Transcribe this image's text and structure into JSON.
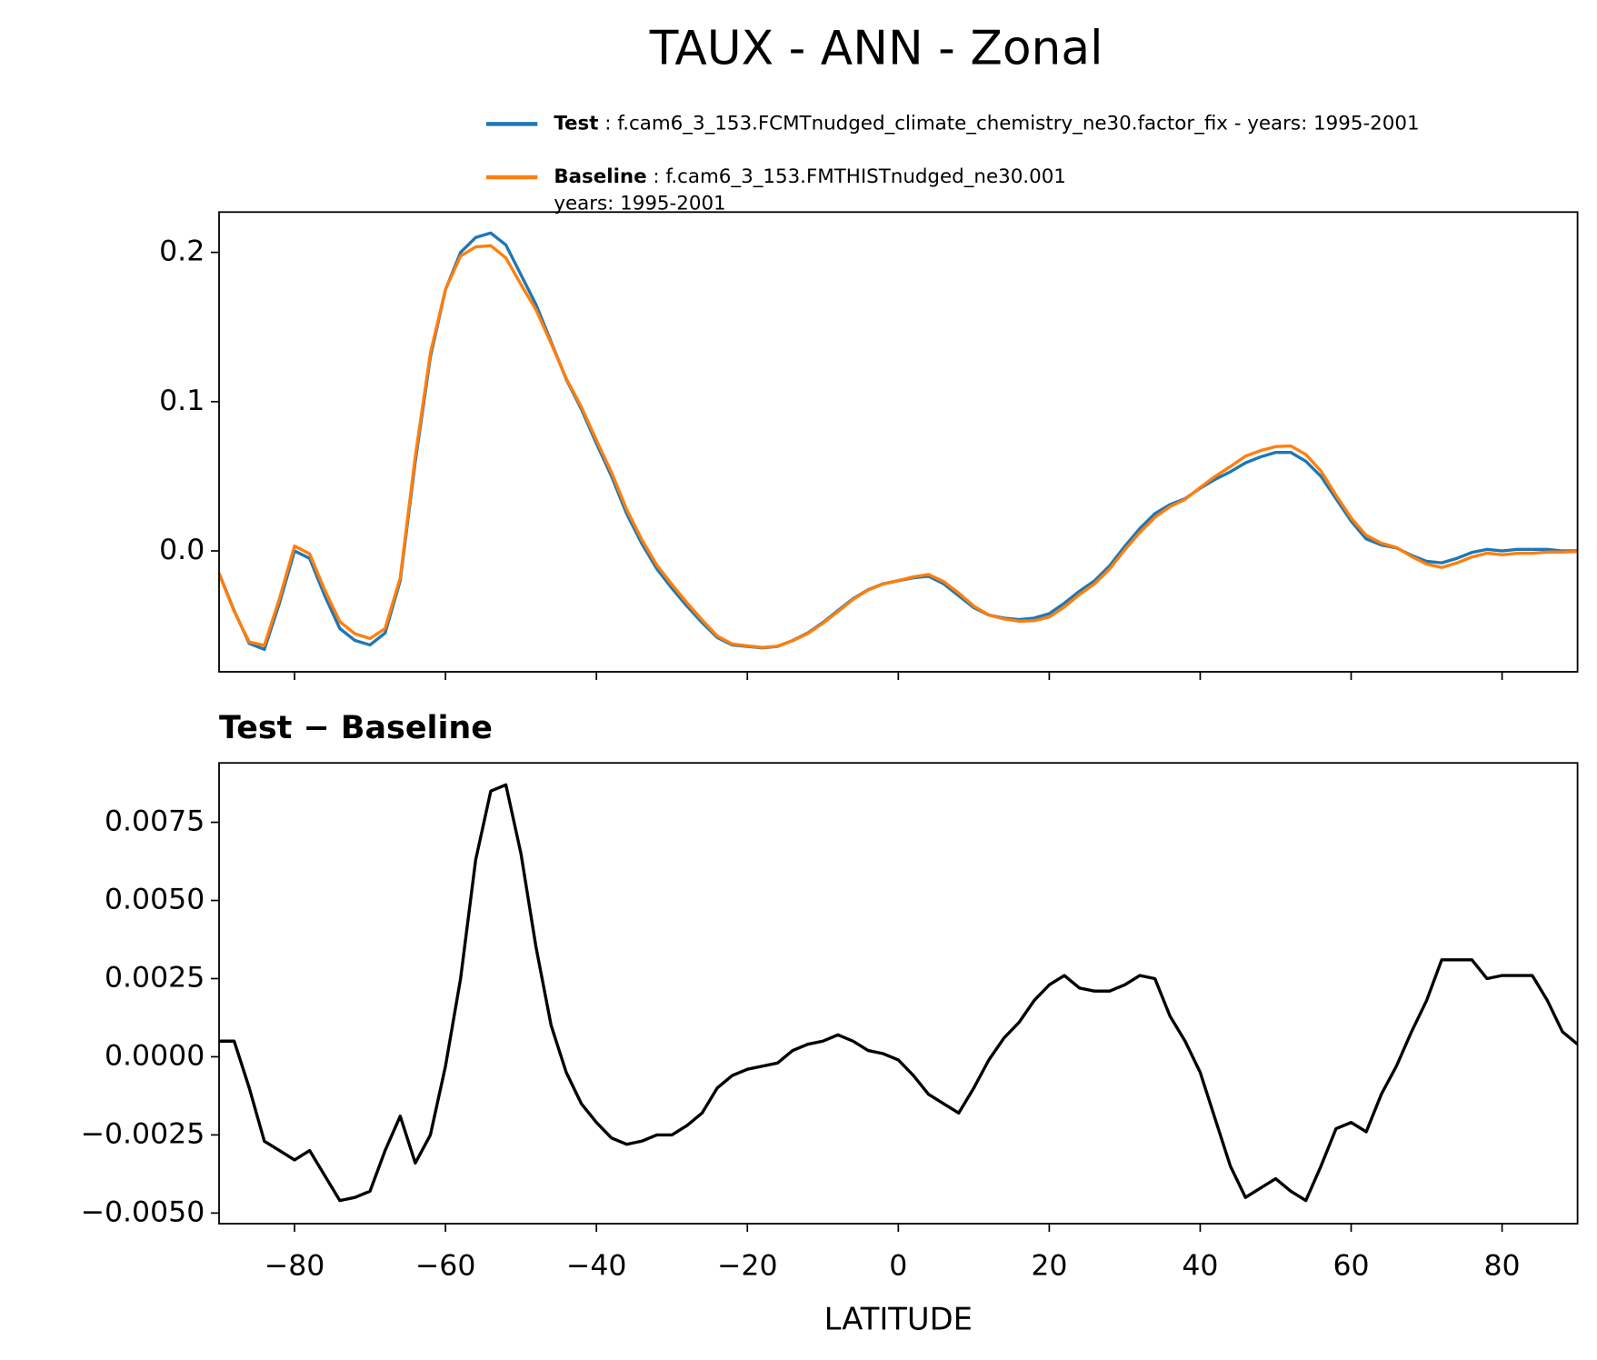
{
  "title": "TAUX - ANN - Zonal",
  "chart_data": [
    {
      "type": "line",
      "x": [
        -90,
        -88,
        -86,
        -84,
        -82,
        -80,
        -78,
        -76,
        -74,
        -72,
        -70,
        -68,
        -66,
        -64,
        -62,
        -60,
        -58,
        -56,
        -54,
        -52,
        -50,
        -48,
        -46,
        -44,
        -42,
        -40,
        -38,
        -36,
        -34,
        -32,
        -30,
        -28,
        -26,
        -24,
        -22,
        -20,
        -18,
        -16,
        -14,
        -12,
        -10,
        -8,
        -6,
        -4,
        -2,
        0,
        2,
        4,
        6,
        8,
        10,
        12,
        14,
        16,
        18,
        20,
        22,
        24,
        26,
        28,
        30,
        32,
        34,
        36,
        38,
        40,
        42,
        44,
        46,
        48,
        50,
        52,
        54,
        56,
        58,
        60,
        62,
        64,
        66,
        68,
        70,
        72,
        74,
        76,
        78,
        80,
        82,
        84,
        86,
        88,
        90
      ],
      "series": [
        {
          "name": "Test",
          "description": [
            ": f.cam6_3_153.FCMTnudged_climate_chemistry_ne30.factor_fix - years: 1995-2001"
          ],
          "color": "#1f77b4",
          "values": [
            -0.015,
            -0.04,
            -0.062,
            -0.066,
            -0.035,
            0.0,
            -0.005,
            -0.03,
            -0.052,
            -0.06,
            -0.063,
            -0.055,
            -0.02,
            0.06,
            0.13,
            0.175,
            0.2,
            0.21,
            0.213,
            0.205,
            0.185,
            0.165,
            0.14,
            0.115,
            0.095,
            0.072,
            0.05,
            0.025,
            0.005,
            -0.012,
            -0.025,
            -0.037,
            -0.048,
            -0.058,
            -0.063,
            -0.064,
            -0.065,
            -0.064,
            -0.06,
            -0.055,
            -0.048,
            -0.04,
            -0.032,
            -0.026,
            -0.022,
            -0.02,
            -0.018,
            -0.017,
            -0.022,
            -0.03,
            -0.038,
            -0.043,
            -0.045,
            -0.046,
            -0.045,
            -0.042,
            -0.035,
            -0.027,
            -0.02,
            -0.01,
            0.003,
            0.015,
            0.025,
            0.031,
            0.035,
            0.042,
            0.048,
            0.053,
            0.059,
            0.063,
            0.066,
            0.066,
            0.06,
            0.05,
            0.035,
            0.02,
            0.008,
            0.004,
            0.002,
            -0.003,
            -0.007,
            -0.008,
            -0.005,
            -0.001,
            0.001,
            0.0,
            0.001,
            0.001,
            0.001,
            0.0,
            0.0
          ]
        },
        {
          "name": "Baseline",
          "description": [
            ": f.cam6_3_153.FMTHISTnudged_ne30.001",
            "years: 1995-2001"
          ],
          "color": "#ff7f0e",
          "values": [
            -0.0155,
            -0.0405,
            -0.061,
            -0.0633,
            -0.032,
            0.0033,
            -0.002,
            -0.0262,
            -0.0474,
            -0.0555,
            -0.0587,
            -0.052,
            -0.0181,
            0.0634,
            0.1325,
            0.1753,
            0.1975,
            0.2037,
            0.2045,
            0.1963,
            0.1785,
            0.1615,
            0.139,
            0.1155,
            0.0965,
            0.0741,
            0.0526,
            0.0278,
            0.0077,
            -0.0095,
            -0.0225,
            -0.0348,
            -0.0462,
            -0.057,
            -0.0624,
            -0.0636,
            -0.0647,
            -0.0638,
            -0.0602,
            -0.0554,
            -0.0485,
            -0.0407,
            -0.0325,
            -0.0262,
            -0.0221,
            -0.0199,
            -0.0174,
            -0.0158,
            -0.0205,
            -0.0282,
            -0.037,
            -0.0429,
            -0.0456,
            -0.0471,
            -0.0468,
            -0.0443,
            -0.0376,
            -0.0292,
            -0.0221,
            -0.0121,
            0.0007,
            0.0124,
            0.0225,
            0.0297,
            0.0345,
            0.0425,
            0.05,
            0.0565,
            0.0635,
            0.0672,
            0.0699,
            0.0703,
            0.0646,
            0.0535,
            0.0373,
            0.0221,
            0.0104,
            0.0052,
            0.0023,
            -0.0038,
            -0.0088,
            -0.0111,
            -0.0081,
            -0.0041,
            -0.0015,
            -0.0026,
            -0.0016,
            -0.0016,
            -0.0008,
            -0.0008,
            -0.0004
          ]
        }
      ],
      "xlim": [
        -90,
        90
      ],
      "xticks": [
        -80,
        -60,
        -40,
        -20,
        0,
        20,
        40,
        60,
        80
      ],
      "xtick_labels": false,
      "ylim": [
        -0.081,
        0.227
      ],
      "yticks": [
        {
          "value": 0,
          "label": "0.0"
        },
        0.1,
        0.2
      ]
    },
    {
      "type": "line",
      "title": "Test − Baseline",
      "xlabel": "LATITUDE",
      "x": [
        -90,
        -88,
        -86,
        -84,
        -82,
        -80,
        -78,
        -76,
        -74,
        -72,
        -70,
        -68,
        -66,
        -64,
        -62,
        -60,
        -58,
        -56,
        -54,
        -52,
        -50,
        -48,
        -46,
        -44,
        -42,
        -40,
        -38,
        -36,
        -34,
        -32,
        -30,
        -28,
        -26,
        -24,
        -22,
        -20,
        -18,
        -16,
        -14,
        -12,
        -10,
        -8,
        -6,
        -4,
        -2,
        0,
        2,
        4,
        6,
        8,
        10,
        12,
        14,
        16,
        18,
        20,
        22,
        24,
        26,
        28,
        30,
        32,
        34,
        36,
        38,
        40,
        42,
        44,
        46,
        48,
        50,
        52,
        54,
        56,
        58,
        60,
        62,
        64,
        66,
        68,
        70,
        72,
        74,
        76,
        78,
        80,
        82,
        84,
        86,
        88,
        90
      ],
      "color": "#000000",
      "values": [
        0.0005,
        0.0005,
        -0.001,
        -0.0027,
        -0.003,
        -0.0033,
        -0.003,
        -0.0038,
        -0.0046,
        -0.0045,
        -0.0043,
        -0.003,
        -0.0019,
        -0.0034,
        -0.0025,
        -0.0003,
        0.0025,
        0.0063,
        0.0085,
        0.0087,
        0.0065,
        0.0035,
        0.001,
        -0.0005,
        -0.0015,
        -0.0021,
        -0.0026,
        -0.0028,
        -0.0027,
        -0.0025,
        -0.0025,
        -0.0022,
        -0.0018,
        -0.001,
        -0.0006,
        -0.0004,
        -0.0003,
        -0.0002,
        0.0002,
        0.0004,
        0.0005,
        0.0007,
        0.0005,
        0.0002,
        0.0001,
        -0.0001,
        -0.0006,
        -0.0012,
        -0.0015,
        -0.0018,
        -0.001,
        -0.0001,
        0.0006,
        0.0011,
        0.0018,
        0.0023,
        0.0026,
        0.0022,
        0.0021,
        0.0021,
        0.0023,
        0.0026,
        0.0025,
        0.0013,
        0.0005,
        -0.0005,
        -0.002,
        -0.0035,
        -0.0045,
        -0.0042,
        -0.0039,
        -0.0043,
        -0.0046,
        -0.0035,
        -0.0023,
        -0.0021,
        -0.0024,
        -0.0012,
        -0.0003,
        0.0008,
        0.0018,
        0.0031,
        0.0031,
        0.0031,
        0.0025,
        0.0026,
        0.0026,
        0.0026,
        0.0018,
        0.0008,
        0.0004
      ],
      "xlim": [
        -90,
        90
      ],
      "xticks": [
        {
          "value": -80,
          "label": "−80"
        },
        {
          "value": -60,
          "label": "−60"
        },
        {
          "value": -40,
          "label": "−40"
        },
        {
          "value": -20,
          "label": "−20"
        },
        0,
        20,
        40,
        60,
        80
      ],
      "ylim": [
        -0.00534,
        0.0094
      ],
      "yticks": [
        {
          "value": -0.005,
          "label": "−0.0050"
        },
        {
          "value": -0.0025,
          "label": "−0.0025"
        },
        {
          "value": 0,
          "label": "0.0000"
        },
        0.0025,
        {
          "value": 0.005,
          "label": "0.0050"
        },
        0.0075
      ]
    }
  ]
}
